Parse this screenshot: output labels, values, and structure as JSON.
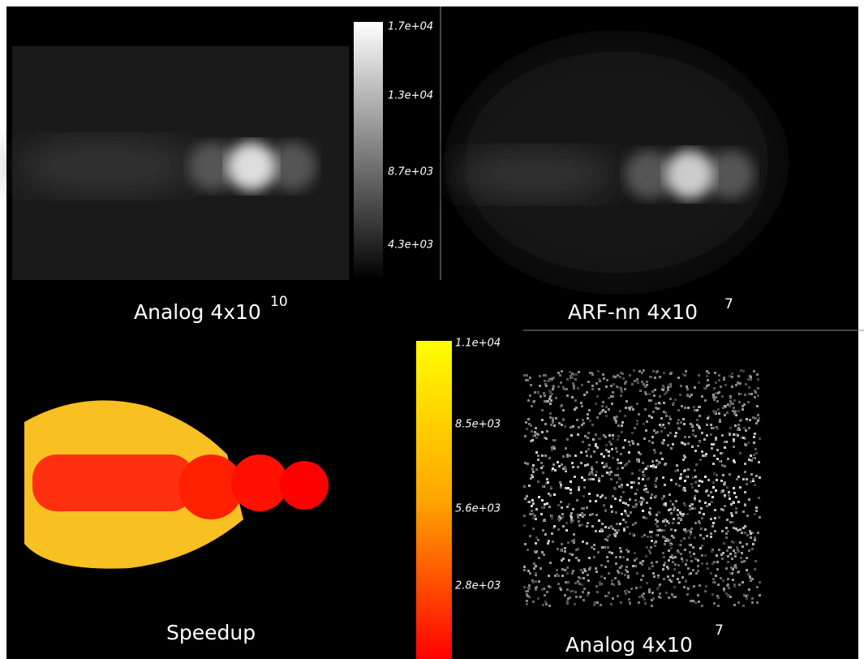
{
  "panels": [
    {
      "label": "Analog 4x10",
      "exponent": "10"
    },
    {
      "label": "ARF-nn 4x10",
      "exponent": "7"
    },
    {
      "label": "Speedup"
    },
    {
      "label": "Analog 4x10",
      "exponent": "7"
    }
  ],
  "colorbars": [
    {
      "ticks": [
        "1.7e+04",
        "1.3e+04",
        "8.7e+03",
        "4.3e+03"
      ]
    },
    {
      "ticks": [
        "1.1e+04",
        "8.5e+03",
        "5.6e+03",
        "2.8e+03"
      ]
    }
  ]
}
